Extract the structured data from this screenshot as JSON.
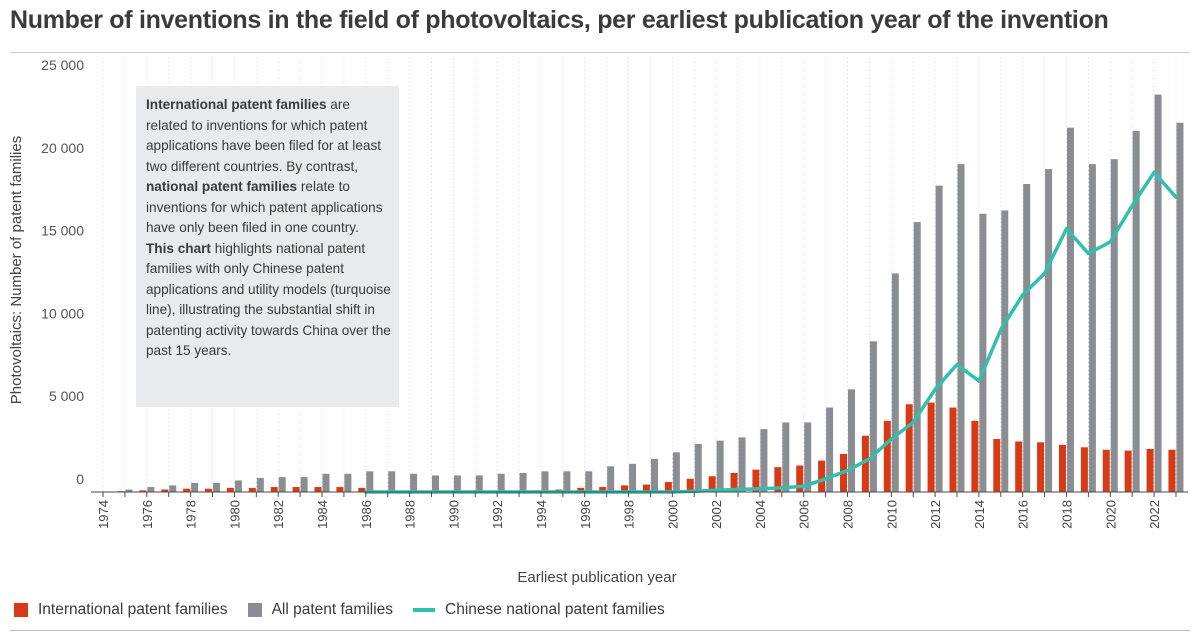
{
  "title": "Number of inventions in the field of photovoltaics, per earliest publication year of the invention",
  "annotation": {
    "p1_bold": "International patent families",
    "p1_a": " are related to inventions for which patent applications have been filed for at least two different countries. By contrast, ",
    "p1_bold2": "national patent families",
    "p1_b": " relate to inventions for which patent applications have only been filed in one country.",
    "p2_bold": "This chart",
    "p2_a": " highlights national patent families with only Chinese patent applications and utility models (turquoise line), illustrating the substantial shift in patenting activity towards China over the past 15 years."
  },
  "legend": {
    "international": "International patent families",
    "all": "All patent families",
    "chinese": "Chinese national patent families"
  },
  "colors": {
    "international": "#d93a16",
    "all": "#8a8d92",
    "chinese": "#31bfae",
    "annotation_bg": "#e8eaeb"
  },
  "chart_data": {
    "type": "bar",
    "xlabel": "Earliest publication year",
    "ylabel": "Photovoltaics: Number of patent families",
    "ylim": [
      0,
      25000
    ],
    "yticks": [
      0,
      5000,
      10000,
      15000,
      20000,
      25000
    ],
    "ytick_labels": [
      "0",
      "5 000",
      "10 000",
      "15 000",
      "20 000",
      "25 000"
    ],
    "xtick_labels": [
      "1974",
      "1976",
      "1978",
      "1980",
      "1982",
      "1984",
      "1986",
      "1988",
      "1990",
      "1992",
      "1994",
      "1996",
      "1998",
      "2000",
      "2002",
      "2004",
      "2006",
      "2008",
      "2010",
      "2012",
      "2014",
      "2016",
      "2018",
      "2020",
      "2022"
    ],
    "grid": "vertical dotted",
    "legend_position": "bottom",
    "categories": [
      1974,
      1975,
      1976,
      1977,
      1978,
      1979,
      1980,
      1981,
      1982,
      1983,
      1984,
      1985,
      1986,
      1987,
      1988,
      1989,
      1990,
      1991,
      1992,
      1993,
      1994,
      1995,
      1996,
      1997,
      1998,
      1999,
      2000,
      2001,
      2002,
      2003,
      2004,
      2005,
      2006,
      2007,
      2008,
      2009,
      2010,
      2011,
      2012,
      2013,
      2014,
      2015,
      2016,
      2017,
      2018,
      2019,
      2020,
      2021,
      2022,
      2023
    ],
    "series": [
      {
        "name": "International patent families",
        "type": "bar",
        "values": [
          0,
          50,
          100,
          150,
          200,
          200,
          250,
          250,
          300,
          300,
          300,
          300,
          250,
          0,
          0,
          0,
          0,
          0,
          0,
          50,
          100,
          150,
          250,
          300,
          400,
          450,
          600,
          800,
          950,
          1150,
          1350,
          1500,
          1600,
          1900,
          2300,
          3400,
          4300,
          5300,
          5400,
          5100,
          4300,
          3200,
          3050,
          3000,
          2850,
          2700,
          2550,
          2500,
          2600,
          2550
        ]
      },
      {
        "name": "All patent families",
        "type": "bar",
        "values": [
          0,
          150,
          300,
          400,
          550,
          550,
          700,
          850,
          900,
          900,
          1100,
          1100,
          1250,
          1250,
          1100,
          1000,
          1000,
          1000,
          1100,
          1150,
          1250,
          1250,
          1250,
          1550,
          1700,
          2000,
          2400,
          2900,
          3100,
          3300,
          3800,
          4200,
          4200,
          5100,
          6200,
          9100,
          13200,
          16300,
          18500,
          19800,
          16800,
          17000,
          18600,
          19500,
          22000,
          19800,
          20100,
          21800,
          24000,
          22300
        ]
      },
      {
        "name": "Chinese national patent families",
        "type": "line",
        "values": [
          null,
          null,
          null,
          null,
          null,
          null,
          null,
          null,
          null,
          null,
          null,
          null,
          0,
          0,
          0,
          0,
          0,
          0,
          0,
          0,
          0,
          0,
          0,
          0,
          0,
          0,
          0,
          50,
          100,
          150,
          200,
          250,
          350,
          800,
          1300,
          2000,
          3200,
          4200,
          6200,
          7700,
          6700,
          9800,
          11900,
          13200,
          15900,
          14400,
          15100,
          17300,
          19300,
          17800
        ]
      }
    ]
  }
}
